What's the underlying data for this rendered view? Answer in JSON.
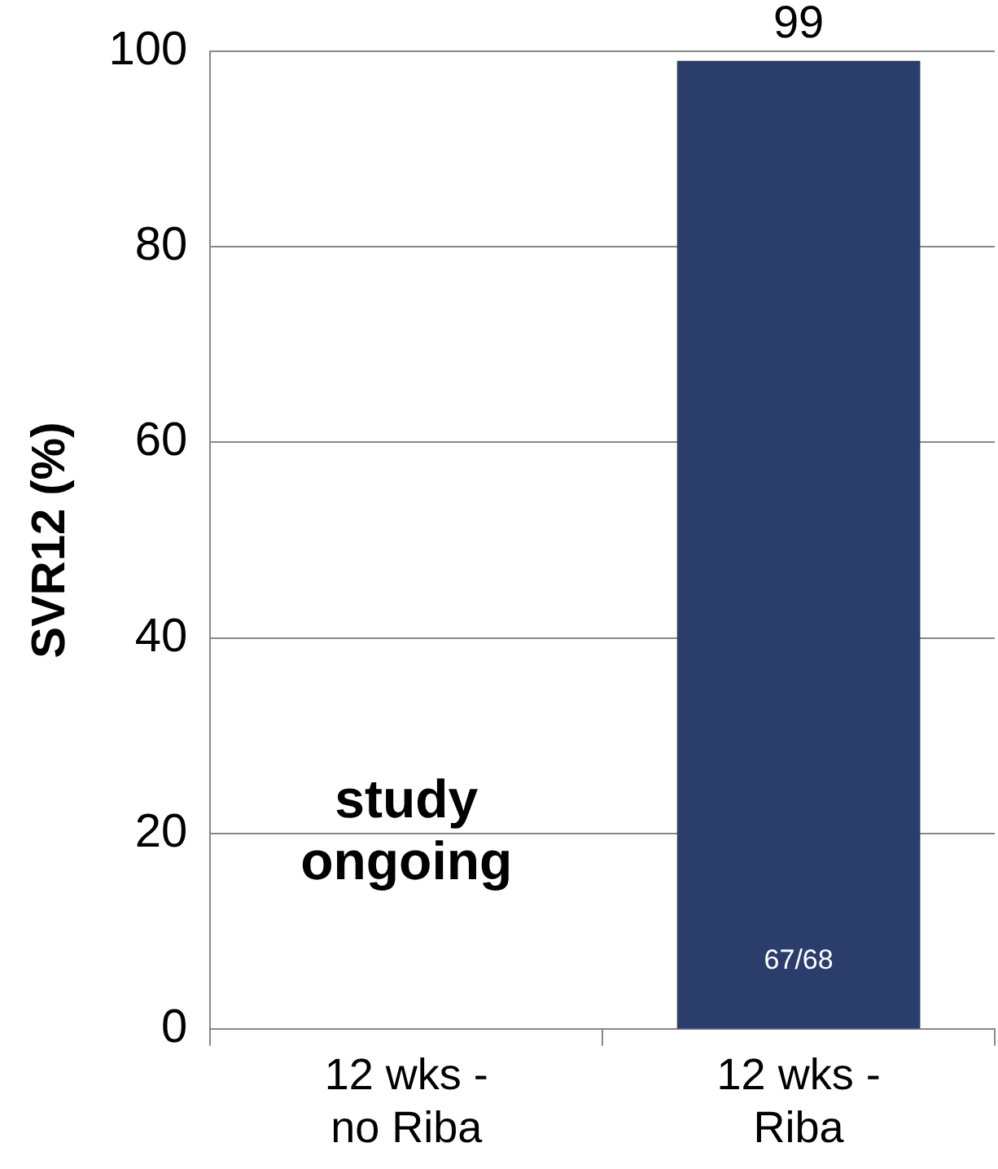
{
  "chart_data": {
    "type": "bar",
    "ylabel": "SVR12 (%)",
    "categories": [
      "12 wks -\nno Riba",
      "12 wks -\nRiba"
    ],
    "values": [
      null,
      99
    ],
    "color": "#2b3d6b",
    "ylim": [
      0,
      100
    ],
    "yticks": [
      0,
      20,
      40,
      60,
      80,
      100
    ],
    "grid": "y",
    "legend": false,
    "data_labels": true,
    "annotations": [
      "study\nongoing",
      "67/68"
    ]
  }
}
